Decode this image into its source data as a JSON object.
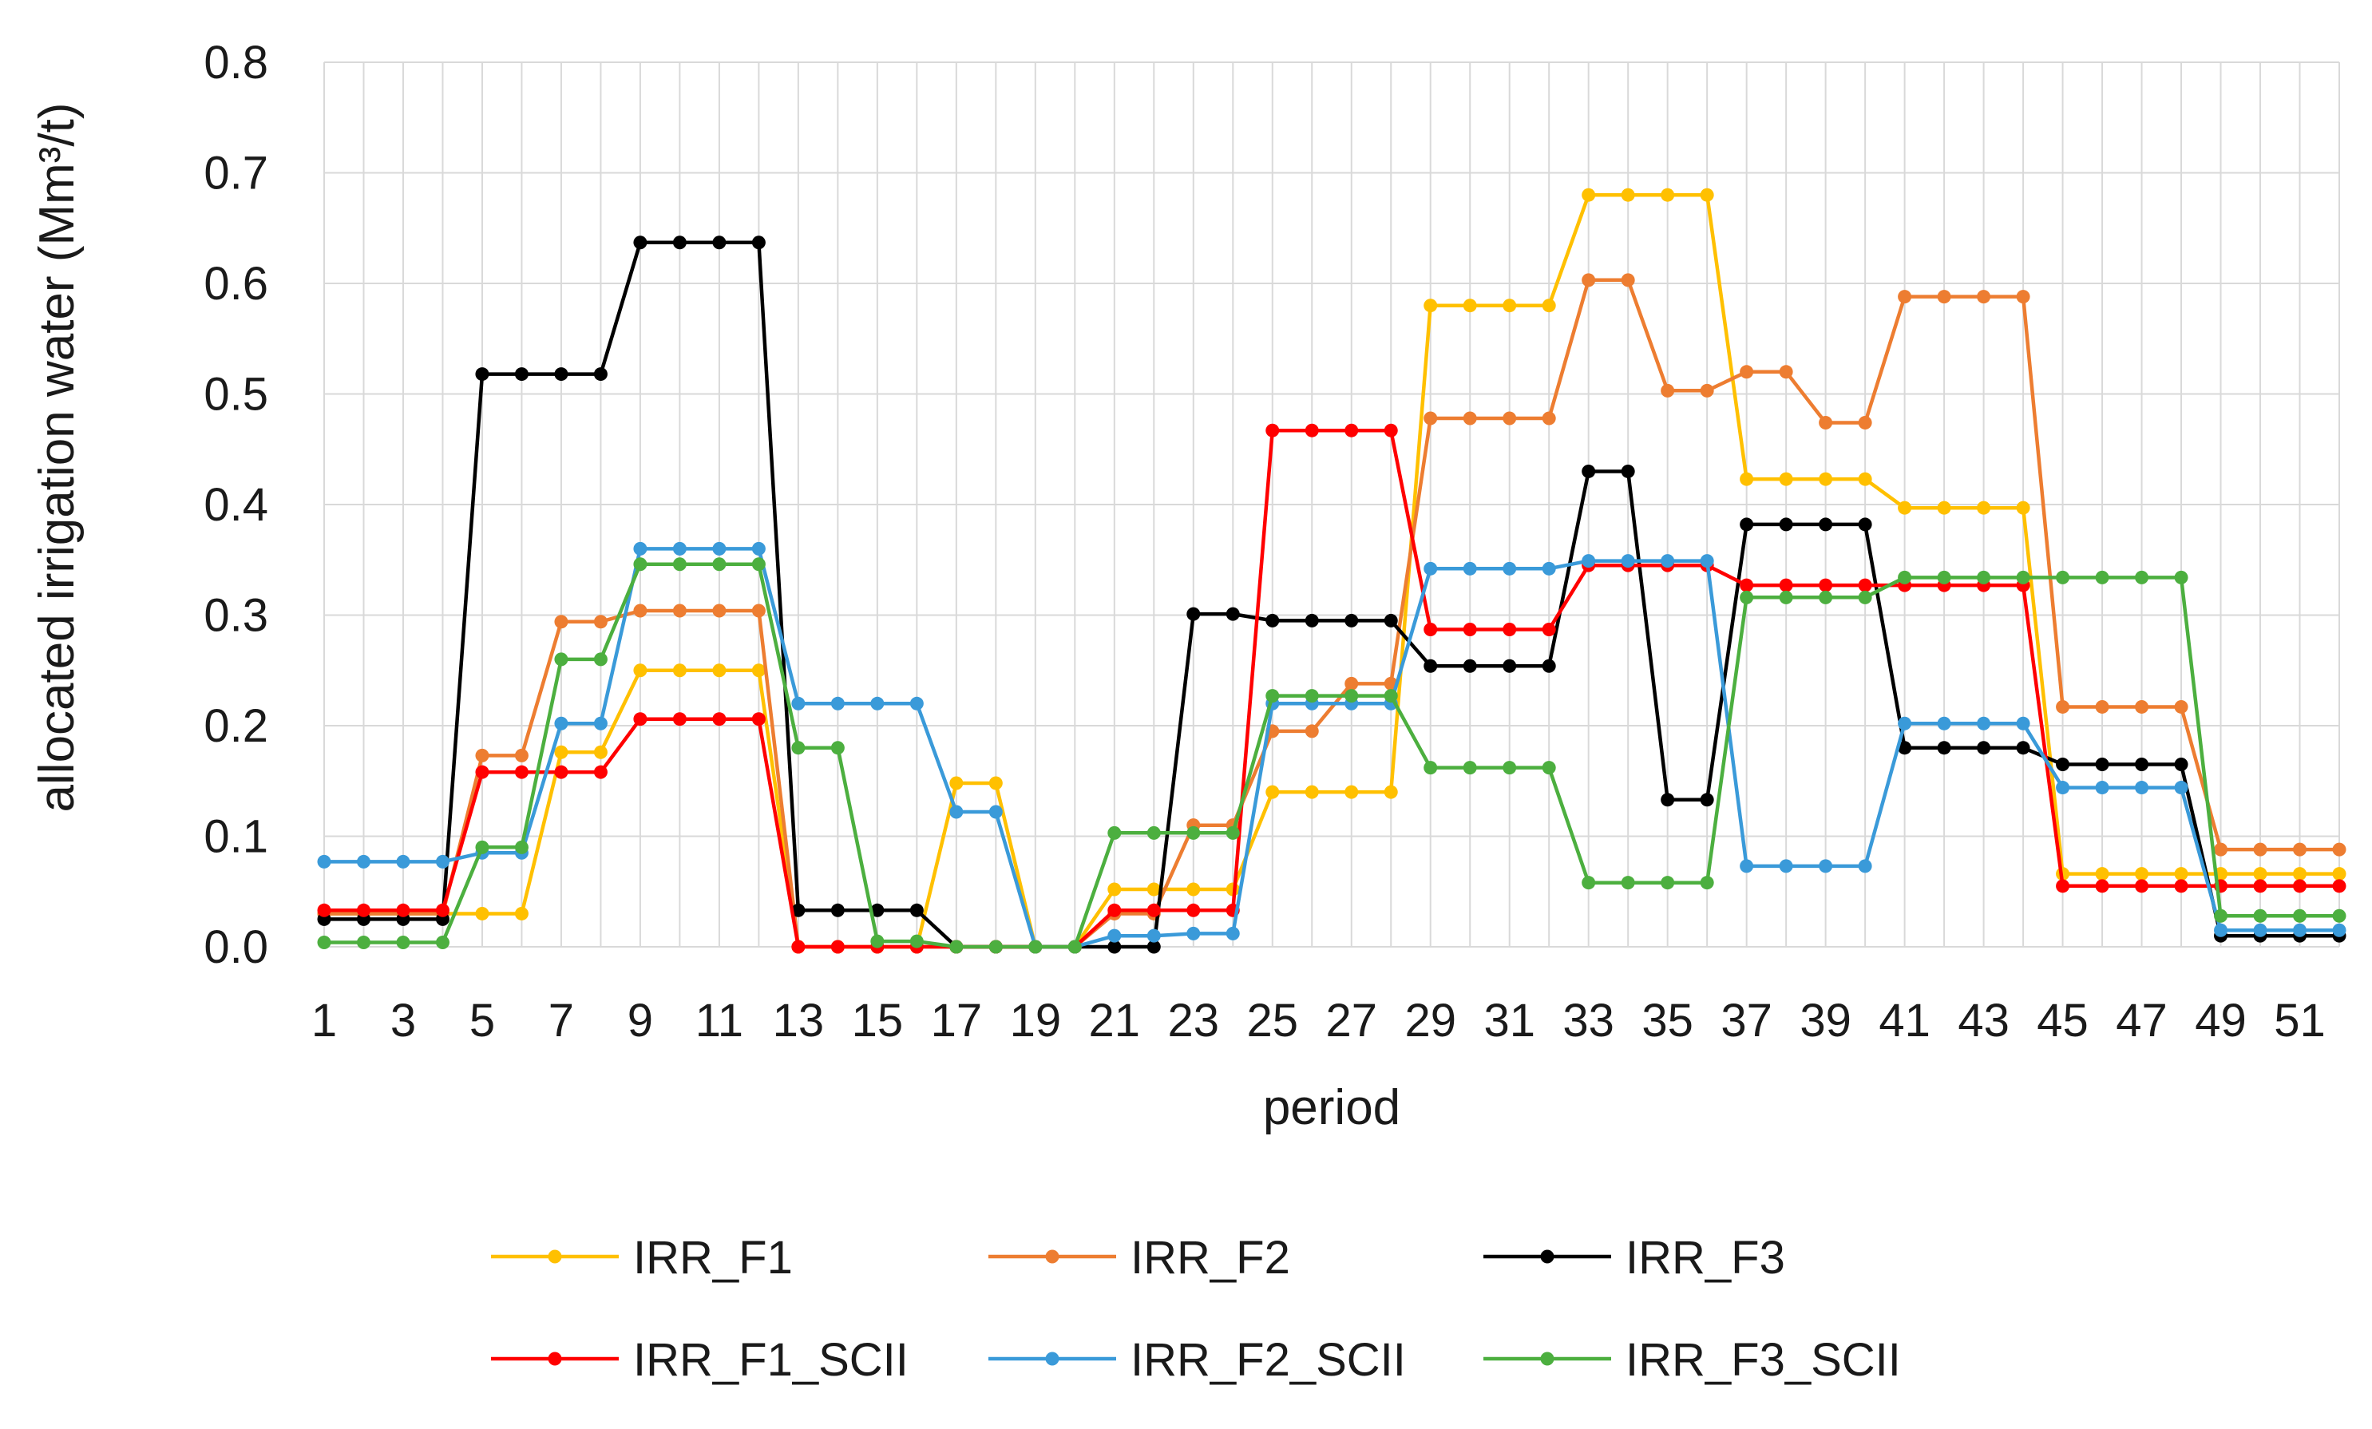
{
  "chart_data": {
    "type": "line",
    "title": "",
    "xlabel": "period",
    "ylabel": "allocated irrigation water (Mm³/t)",
    "ylim": [
      0,
      0.8
    ],
    "ytick_labels": [
      "0.0",
      "0.1",
      "0.2",
      "0.3",
      "0.4",
      "0.5",
      "0.6",
      "0.7",
      "0.8"
    ],
    "xtick_labels": [
      "1",
      "3",
      "5",
      "7",
      "9",
      "11",
      "13",
      "15",
      "17",
      "19",
      "21",
      "23",
      "25",
      "27",
      "29",
      "31",
      "33",
      "35",
      "37",
      "39",
      "41",
      "43",
      "45",
      "47",
      "49",
      "51"
    ],
    "x": [
      1,
      2,
      3,
      4,
      5,
      6,
      7,
      8,
      9,
      10,
      11,
      12,
      13,
      14,
      15,
      16,
      17,
      18,
      19,
      20,
      21,
      22,
      23,
      24,
      25,
      26,
      27,
      28,
      29,
      30,
      31,
      32,
      33,
      34,
      35,
      36,
      37,
      38,
      39,
      40,
      41,
      42,
      43,
      44,
      45,
      46,
      47,
      48,
      49,
      50,
      51,
      52
    ],
    "grid": true,
    "legend_position": "bottom",
    "series": [
      {
        "name": "IRR_F1",
        "color": "#FFC000",
        "values": [
          0.03,
          0.03,
          0.03,
          0.03,
          0.03,
          0.03,
          0.176,
          0.176,
          0.25,
          0.25,
          0.25,
          0.25,
          0,
          0,
          0,
          0,
          0.148,
          0.148,
          0,
          0,
          0.052,
          0.052,
          0.052,
          0.052,
          0.14,
          0.14,
          0.14,
          0.14,
          0.58,
          0.58,
          0.58,
          0.58,
          0.68,
          0.68,
          0.68,
          0.68,
          0.423,
          0.423,
          0.423,
          0.423,
          0.397,
          0.397,
          0.397,
          0.397,
          0.066,
          0.066,
          0.066,
          0.066,
          0.066,
          0.066,
          0.066,
          0.066
        ]
      },
      {
        "name": "IRR_F2",
        "color": "#ED7D31",
        "values": [
          0.03,
          0.03,
          0.03,
          0.03,
          0.173,
          0.173,
          0.294,
          0.294,
          0.304,
          0.304,
          0.304,
          0.304,
          0,
          0,
          0,
          0,
          0,
          0,
          0,
          0,
          0.03,
          0.03,
          0.11,
          0.11,
          0.195,
          0.195,
          0.238,
          0.238,
          0.478,
          0.478,
          0.478,
          0.478,
          0.603,
          0.603,
          0.503,
          0.503,
          0.52,
          0.52,
          0.474,
          0.474,
          0.588,
          0.588,
          0.588,
          0.588,
          0.217,
          0.217,
          0.217,
          0.217,
          0.088,
          0.088,
          0.088,
          0.088
        ]
      },
      {
        "name": "IRR_F3",
        "color": "#000000",
        "values": [
          0.025,
          0.025,
          0.025,
          0.025,
          0.518,
          0.518,
          0.518,
          0.518,
          0.637,
          0.637,
          0.637,
          0.637,
          0.033,
          0.033,
          0.033,
          0.033,
          0,
          0,
          0,
          0,
          0,
          0,
          0.301,
          0.301,
          0.295,
          0.295,
          0.295,
          0.295,
          0.254,
          0.254,
          0.254,
          0.254,
          0.43,
          0.43,
          0.133,
          0.133,
          0.382,
          0.382,
          0.382,
          0.382,
          0.18,
          0.18,
          0.18,
          0.18,
          0.165,
          0.165,
          0.165,
          0.165,
          0.01,
          0.01,
          0.01,
          0.01
        ]
      },
      {
        "name": "IRR_F1_SCII",
        "color": "#FF0000",
        "values": [
          0.033,
          0.033,
          0.033,
          0.033,
          0.158,
          0.158,
          0.158,
          0.158,
          0.206,
          0.206,
          0.206,
          0.206,
          0,
          0,
          0,
          0,
          0,
          0,
          0,
          0,
          0.033,
          0.033,
          0.033,
          0.033,
          0.467,
          0.467,
          0.467,
          0.467,
          0.287,
          0.287,
          0.287,
          0.287,
          0.345,
          0.345,
          0.345,
          0.345,
          0.327,
          0.327,
          0.327,
          0.327,
          0.327,
          0.327,
          0.327,
          0.327,
          0.055,
          0.055,
          0.055,
          0.055,
          0.055,
          0.055,
          0.055,
          0.055
        ]
      },
      {
        "name": "IRR_F2_SCII",
        "color": "#3A9AD9",
        "values": [
          0.077,
          0.077,
          0.077,
          0.077,
          0.085,
          0.085,
          0.202,
          0.202,
          0.36,
          0.36,
          0.36,
          0.36,
          0.22,
          0.22,
          0.22,
          0.22,
          0.122,
          0.122,
          0,
          0,
          0.01,
          0.01,
          0.012,
          0.012,
          0.22,
          0.22,
          0.22,
          0.22,
          0.342,
          0.342,
          0.342,
          0.342,
          0.349,
          0.349,
          0.349,
          0.349,
          0.073,
          0.073,
          0.073,
          0.073,
          0.202,
          0.202,
          0.202,
          0.202,
          0.144,
          0.144,
          0.144,
          0.144,
          0.015,
          0.015,
          0.015,
          0.015
        ]
      },
      {
        "name": "IRR_F3_SCII",
        "color": "#4CAF3F",
        "values": [
          0.004,
          0.004,
          0.004,
          0.004,
          0.09,
          0.09,
          0.26,
          0.26,
          0.346,
          0.346,
          0.346,
          0.346,
          0.18,
          0.18,
          0.005,
          0.005,
          0,
          0,
          0,
          0,
          0.103,
          0.103,
          0.103,
          0.103,
          0.227,
          0.227,
          0.227,
          0.227,
          0.162,
          0.162,
          0.162,
          0.162,
          0.058,
          0.058,
          0.058,
          0.058,
          0.316,
          0.316,
          0.316,
          0.316,
          0.334,
          0.334,
          0.334,
          0.334,
          0.334,
          0.334,
          0.334,
          0.334,
          0.028,
          0.028,
          0.028,
          0.028
        ]
      }
    ]
  }
}
